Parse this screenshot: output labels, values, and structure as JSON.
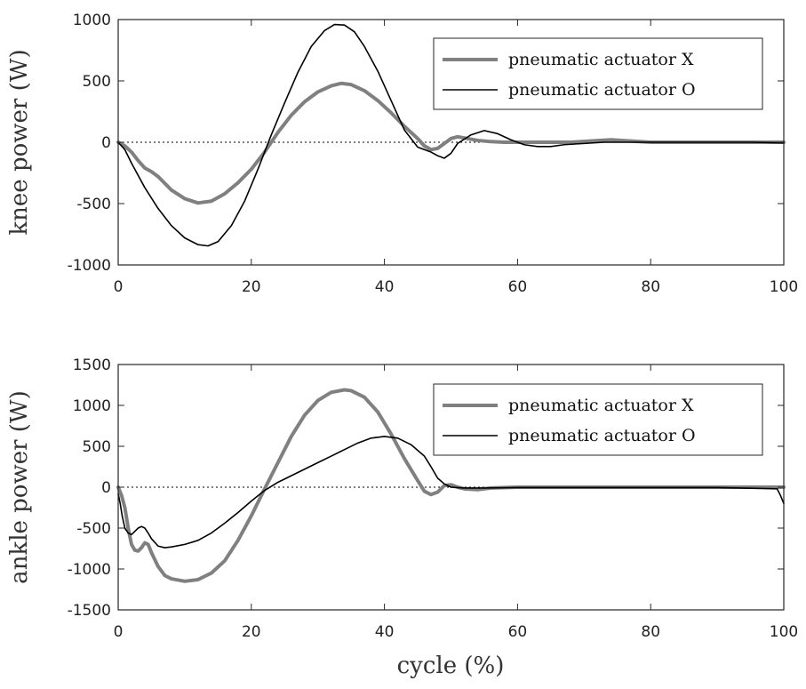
{
  "chart_data": [
    {
      "type": "line",
      "ylabel": "knee power (W)",
      "xlabel": "",
      "xlim": [
        0,
        100
      ],
      "ylim": [
        -1000,
        1000
      ],
      "xticks": [
        "0",
        "20",
        "40",
        "60",
        "80",
        "100"
      ],
      "yticks": [
        "-1000",
        "-500",
        "0",
        "500",
        "1000"
      ],
      "legend_position": "top-right",
      "zero_line": "dotted",
      "series": [
        {
          "name": "pneumatic actuator X",
          "color": "#808080",
          "x": [
            0,
            1,
            2,
            3,
            4,
            5,
            6,
            8,
            10,
            12,
            14,
            16,
            18,
            20,
            22,
            24,
            26,
            28,
            30,
            32,
            33.5,
            35,
            37,
            39,
            41,
            43,
            45,
            46,
            47,
            48,
            49,
            50,
            51,
            52,
            54,
            56,
            58,
            60,
            62,
            65,
            68,
            71,
            74,
            77,
            80,
            85,
            90,
            95,
            100
          ],
          "y": [
            0,
            -30,
            -80,
            -150,
            -210,
            -240,
            -280,
            -390,
            -460,
            -495,
            -480,
            -420,
            -330,
            -220,
            -80,
            80,
            220,
            330,
            410,
            460,
            480,
            470,
            420,
            340,
            240,
            130,
            30,
            -30,
            -60,
            -50,
            -10,
            30,
            45,
            35,
            15,
            5,
            0,
            0,
            0,
            0,
            0,
            10,
            20,
            10,
            0,
            0,
            0,
            0,
            0
          ]
        },
        {
          "name": "pneumatic actuator O",
          "color": "#000000",
          "x": [
            0,
            1,
            2,
            4,
            6,
            8,
            10,
            12,
            13.5,
            15,
            17,
            19,
            21,
            23,
            25,
            27,
            29,
            31,
            32.5,
            34,
            35.5,
            37,
            39,
            41,
            43,
            45,
            47,
            48,
            49,
            50,
            51,
            53,
            55,
            57,
            59,
            61,
            63,
            65,
            67,
            70,
            73,
            76,
            80,
            85,
            90,
            95,
            100
          ],
          "y": [
            0,
            -60,
            -170,
            -370,
            -540,
            -680,
            -780,
            -835,
            -845,
            -810,
            -680,
            -480,
            -220,
            60,
            320,
            570,
            780,
            910,
            960,
            955,
            900,
            780,
            580,
            340,
            100,
            -40,
            -80,
            -110,
            -130,
            -90,
            -10,
            60,
            95,
            70,
            20,
            -20,
            -35,
            -35,
            -20,
            -10,
            0,
            0,
            0,
            0,
            0,
            0,
            -5
          ]
        }
      ]
    },
    {
      "type": "line",
      "ylabel": "ankle power (W)",
      "xlabel": "cycle (%)",
      "xlim": [
        0,
        100
      ],
      "ylim": [
        -1500,
        1500
      ],
      "xticks": [
        "0",
        "20",
        "40",
        "60",
        "80",
        "100"
      ],
      "yticks": [
        "-1500",
        "-1000",
        "-500",
        "0",
        "500",
        "1000",
        "1500"
      ],
      "legend_position": "top-right",
      "zero_line": "dotted",
      "series": [
        {
          "name": "pneumatic actuator X",
          "color": "#808080",
          "x": [
            0,
            0.5,
            1,
            1.5,
            2,
            2.5,
            3,
            3.5,
            4,
            4.5,
            5,
            6,
            7,
            8,
            10,
            12,
            14,
            16,
            18,
            20,
            22,
            24,
            26,
            28,
            30,
            32,
            34,
            35,
            37,
            39,
            41,
            43,
            45,
            46,
            47,
            48,
            49,
            50,
            51,
            52,
            54,
            56,
            60,
            70,
            80,
            90,
            100
          ],
          "y": [
            0,
            -100,
            -250,
            -500,
            -700,
            -770,
            -780,
            -740,
            -680,
            -700,
            -800,
            -970,
            -1080,
            -1120,
            -1150,
            -1130,
            -1050,
            -900,
            -650,
            -350,
            -20,
            300,
            620,
            880,
            1060,
            1160,
            1190,
            1180,
            1100,
            920,
            650,
            350,
            80,
            -50,
            -90,
            -60,
            20,
            30,
            0,
            -20,
            -30,
            -10,
            0,
            0,
            0,
            0,
            0
          ]
        },
        {
          "name": "pneumatic actuator O",
          "color": "#000000",
          "x": [
            0,
            0.3,
            0.6,
            1,
            1.5,
            2,
            2.5,
            3,
            3.5,
            4,
            4.5,
            5,
            6,
            7,
            8,
            10,
            12,
            14,
            16,
            18,
            20,
            22,
            24,
            26,
            28,
            30,
            32,
            34,
            36,
            38,
            40,
            42,
            44,
            46,
            47,
            48,
            49,
            50,
            52,
            55,
            60,
            70,
            80,
            90,
            99,
            99.5,
            100
          ],
          "y": [
            -80,
            -200,
            -350,
            -500,
            -560,
            -580,
            -540,
            -500,
            -480,
            -500,
            -560,
            -630,
            -720,
            -740,
            -730,
            -700,
            -650,
            -560,
            -440,
            -310,
            -170,
            -40,
            60,
            140,
            220,
            300,
            380,
            460,
            540,
            600,
            620,
            600,
            520,
            380,
            250,
            110,
            40,
            0,
            -10,
            -10,
            -5,
            -5,
            -5,
            -5,
            -20,
            -100,
            -200
          ]
        }
      ]
    }
  ]
}
